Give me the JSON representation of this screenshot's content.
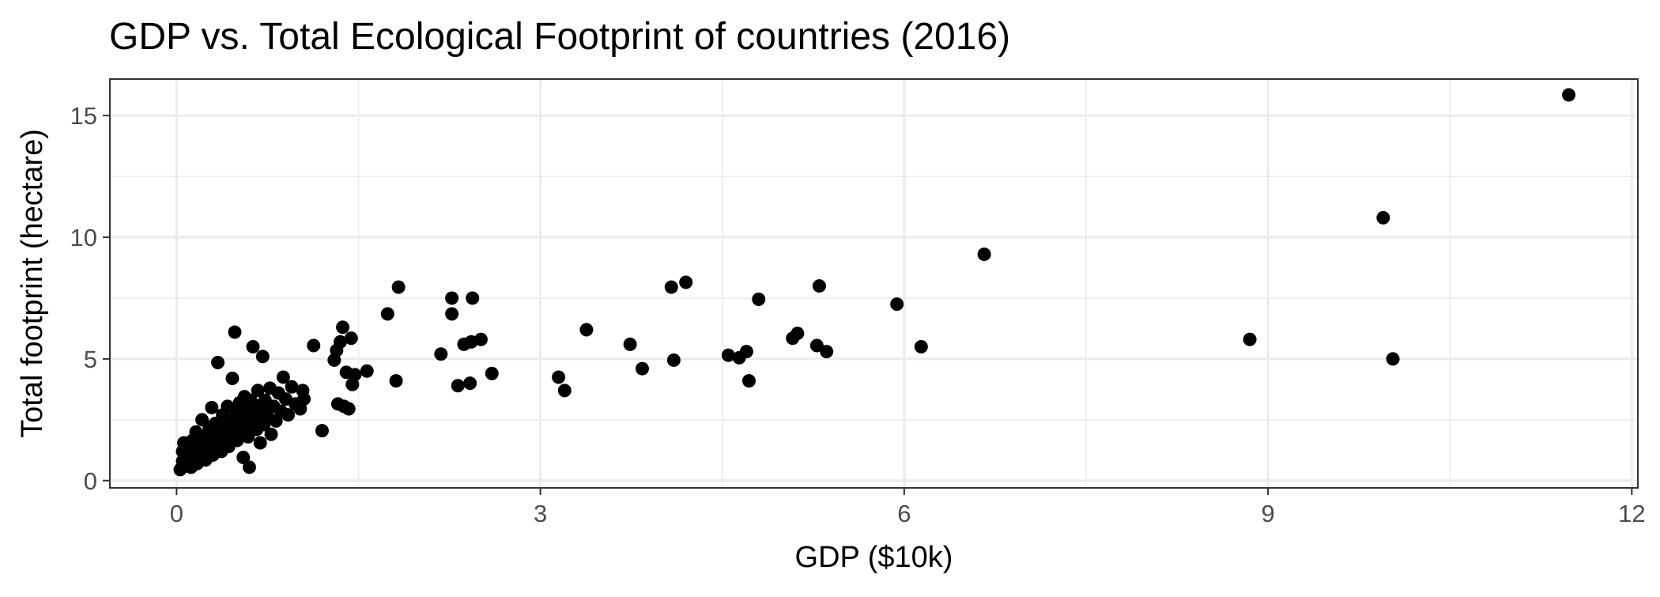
{
  "chart_data": {
    "type": "scatter",
    "title": "GDP vs. Total Ecological Footprint of countries (2016)",
    "xlabel": "GDP ($10k)",
    "ylabel": "Total footprint (hectare)",
    "xlim": [
      -0.55,
      12.05
    ],
    "ylim": [
      -0.3,
      16.5
    ],
    "x_ticks": [
      0,
      3,
      6,
      9,
      12
    ],
    "y_ticks": [
      0,
      5,
      10,
      15
    ],
    "x_minor_ticks": [
      1.5,
      4.5,
      7.5,
      10.5
    ],
    "y_minor_ticks": [
      2.5,
      7.5,
      12.5
    ],
    "x_tick_labels": [
      "0",
      "3",
      "6",
      "9",
      "12"
    ],
    "y_tick_labels": [
      "0",
      "5",
      "10",
      "15"
    ],
    "grid": true,
    "theme": "bw",
    "point_color": "#000000",
    "points": [
      {
        "x": 0.03,
        "y": 0.45
      },
      {
        "x": 0.05,
        "y": 0.8
      },
      {
        "x": 0.05,
        "y": 1.2
      },
      {
        "x": 0.06,
        "y": 1.55
      },
      {
        "x": 0.08,
        "y": 0.6
      },
      {
        "x": 0.09,
        "y": 1.0
      },
      {
        "x": 0.1,
        "y": 0.75
      },
      {
        "x": 0.11,
        "y": 1.3
      },
      {
        "x": 0.12,
        "y": 0.55
      },
      {
        "x": 0.13,
        "y": 1.65
      },
      {
        "x": 0.14,
        "y": 0.9
      },
      {
        "x": 0.15,
        "y": 1.1
      },
      {
        "x": 0.16,
        "y": 2.0
      },
      {
        "x": 0.17,
        "y": 0.7
      },
      {
        "x": 0.18,
        "y": 1.45
      },
      {
        "x": 0.19,
        "y": 1.85
      },
      {
        "x": 0.2,
        "y": 0.95
      },
      {
        "x": 0.21,
        "y": 2.5
      },
      {
        "x": 0.22,
        "y": 1.25
      },
      {
        "x": 0.23,
        "y": 1.6
      },
      {
        "x": 0.24,
        "y": 0.85
      },
      {
        "x": 0.25,
        "y": 1.9
      },
      {
        "x": 0.26,
        "y": 1.15
      },
      {
        "x": 0.27,
        "y": 2.2
      },
      {
        "x": 0.28,
        "y": 1.4
      },
      {
        "x": 0.29,
        "y": 3.0
      },
      {
        "x": 0.3,
        "y": 1.05
      },
      {
        "x": 0.31,
        "y": 1.75
      },
      {
        "x": 0.32,
        "y": 2.35
      },
      {
        "x": 0.33,
        "y": 1.3
      },
      {
        "x": 0.34,
        "y": 4.85
      },
      {
        "x": 0.35,
        "y": 1.6
      },
      {
        "x": 0.36,
        "y": 2.0
      },
      {
        "x": 0.37,
        "y": 1.2
      },
      {
        "x": 0.38,
        "y": 2.7
      },
      {
        "x": 0.39,
        "y": 1.5
      },
      {
        "x": 0.4,
        "y": 2.2
      },
      {
        "x": 0.41,
        "y": 1.85
      },
      {
        "x": 0.42,
        "y": 3.05
      },
      {
        "x": 0.43,
        "y": 1.4
      },
      {
        "x": 0.44,
        "y": 2.45
      },
      {
        "x": 0.45,
        "y": 1.7
      },
      {
        "x": 0.46,
        "y": 4.2
      },
      {
        "x": 0.47,
        "y": 2.05
      },
      {
        "x": 0.48,
        "y": 6.1
      },
      {
        "x": 0.49,
        "y": 2.8
      },
      {
        "x": 0.5,
        "y": 1.65
      },
      {
        "x": 0.51,
        "y": 2.3
      },
      {
        "x": 0.52,
        "y": 3.2
      },
      {
        "x": 0.53,
        "y": 1.95
      },
      {
        "x": 0.54,
        "y": 2.6
      },
      {
        "x": 0.55,
        "y": 0.95
      },
      {
        "x": 0.56,
        "y": 3.45
      },
      {
        "x": 0.57,
        "y": 2.15
      },
      {
        "x": 0.58,
        "y": 2.9
      },
      {
        "x": 0.59,
        "y": 1.8
      },
      {
        "x": 0.6,
        "y": 0.55
      },
      {
        "x": 0.61,
        "y": 3.3
      },
      {
        "x": 0.62,
        "y": 2.4
      },
      {
        "x": 0.63,
        "y": 5.5
      },
      {
        "x": 0.64,
        "y": 2.75
      },
      {
        "x": 0.65,
        "y": 3.1
      },
      {
        "x": 0.66,
        "y": 2.1
      },
      {
        "x": 0.67,
        "y": 3.7
      },
      {
        "x": 0.68,
        "y": 2.5
      },
      {
        "x": 0.69,
        "y": 1.55
      },
      {
        "x": 0.7,
        "y": 3.0
      },
      {
        "x": 0.71,
        "y": 5.1
      },
      {
        "x": 0.72,
        "y": 2.3
      },
      {
        "x": 0.73,
        "y": 3.3
      },
      {
        "x": 0.75,
        "y": 2.65
      },
      {
        "x": 0.77,
        "y": 3.8
      },
      {
        "x": 0.78,
        "y": 1.9
      },
      {
        "x": 0.8,
        "y": 3.05
      },
      {
        "x": 0.82,
        "y": 2.45
      },
      {
        "x": 0.84,
        "y": 3.6
      },
      {
        "x": 0.86,
        "y": 2.85
      },
      {
        "x": 0.88,
        "y": 4.25
      },
      {
        "x": 0.9,
        "y": 3.35
      },
      {
        "x": 0.92,
        "y": 2.7
      },
      {
        "x": 0.95,
        "y": 3.85
      },
      {
        "x": 0.98,
        "y": 3.15
      },
      {
        "x": 1.02,
        "y": 2.95
      },
      {
        "x": 1.04,
        "y": 3.7
      },
      {
        "x": 1.05,
        "y": 3.35
      },
      {
        "x": 1.13,
        "y": 5.55
      },
      {
        "x": 1.2,
        "y": 2.05
      },
      {
        "x": 1.3,
        "y": 4.95
      },
      {
        "x": 1.32,
        "y": 5.35
      },
      {
        "x": 1.33,
        "y": 3.15
      },
      {
        "x": 1.35,
        "y": 5.7
      },
      {
        "x": 1.37,
        "y": 6.3
      },
      {
        "x": 1.38,
        "y": 3.05
      },
      {
        "x": 1.4,
        "y": 4.45
      },
      {
        "x": 1.42,
        "y": 2.95
      },
      {
        "x": 1.44,
        "y": 5.85
      },
      {
        "x": 1.45,
        "y": 3.95
      },
      {
        "x": 1.47,
        "y": 4.35
      },
      {
        "x": 1.57,
        "y": 4.5
      },
      {
        "x": 1.74,
        "y": 6.85
      },
      {
        "x": 1.81,
        "y": 4.1
      },
      {
        "x": 1.83,
        "y": 7.95
      },
      {
        "x": 2.18,
        "y": 5.2
      },
      {
        "x": 2.27,
        "y": 7.5
      },
      {
        "x": 2.27,
        "y": 6.85
      },
      {
        "x": 2.32,
        "y": 3.9
      },
      {
        "x": 2.37,
        "y": 5.6
      },
      {
        "x": 2.42,
        "y": 4.0
      },
      {
        "x": 2.43,
        "y": 5.7
      },
      {
        "x": 2.44,
        "y": 7.5
      },
      {
        "x": 2.51,
        "y": 5.8
      },
      {
        "x": 2.6,
        "y": 4.4
      },
      {
        "x": 3.15,
        "y": 4.25
      },
      {
        "x": 3.2,
        "y": 3.7
      },
      {
        "x": 3.38,
        "y": 6.2
      },
      {
        "x": 3.74,
        "y": 5.6
      },
      {
        "x": 3.84,
        "y": 4.6
      },
      {
        "x": 4.08,
        "y": 7.95
      },
      {
        "x": 4.1,
        "y": 4.95
      },
      {
        "x": 4.2,
        "y": 8.15
      },
      {
        "x": 4.55,
        "y": 5.15
      },
      {
        "x": 4.64,
        "y": 5.05
      },
      {
        "x": 4.7,
        "y": 5.3
      },
      {
        "x": 4.72,
        "y": 4.1
      },
      {
        "x": 4.8,
        "y": 7.45
      },
      {
        "x": 5.08,
        "y": 5.85
      },
      {
        "x": 5.12,
        "y": 6.05
      },
      {
        "x": 5.28,
        "y": 5.55
      },
      {
        "x": 5.3,
        "y": 8.0
      },
      {
        "x": 5.36,
        "y": 5.3
      },
      {
        "x": 5.94,
        "y": 7.25
      },
      {
        "x": 6.14,
        "y": 5.5
      },
      {
        "x": 6.66,
        "y": 9.3
      },
      {
        "x": 8.85,
        "y": 5.8
      },
      {
        "x": 9.95,
        "y": 10.8
      },
      {
        "x": 10.03,
        "y": 5.0
      },
      {
        "x": 11.48,
        "y": 15.85
      }
    ]
  }
}
